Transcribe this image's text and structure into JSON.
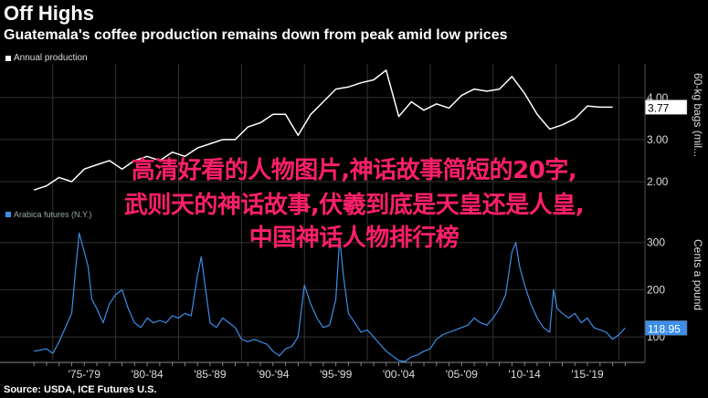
{
  "header": {
    "title": "Off Highs",
    "subtitle": "Guatemala's coffee production remains down from peak amid low prices",
    "source": "Source: USDA, ICE Futures U.S."
  },
  "overlay": {
    "line1": "高清好看的人物图片,神话故事简短的20字,",
    "line2": "武则天的神话故事,伏羲到底是天皇还是人皇,",
    "line3": "中国神话人物排行榜"
  },
  "colors": {
    "top_line": "#ffffff",
    "bottom_line": "#3c8ee8",
    "grid": "#333333",
    "background": "#000000"
  },
  "chart_data": [
    {
      "type": "line",
      "legend": "Annual production",
      "ylabel": "60-kg bags (mil...",
      "yticks": [
        "2.00",
        "3.00",
        "4.00"
      ],
      "ylim": [
        1.5,
        4.8
      ],
      "last_value_label": "3.77",
      "x": [
        1973,
        1974,
        1975,
        1976,
        1977,
        1978,
        1979,
        1980,
        1981,
        1982,
        1983,
        1984,
        1985,
        1986,
        1987,
        1988,
        1989,
        1990,
        1991,
        1992,
        1993,
        1994,
        1995,
        1996,
        1997,
        1998,
        1999,
        2000,
        2001,
        2002,
        2003,
        2004,
        2005,
        2006,
        2007,
        2008,
        2009,
        2010,
        2011,
        2012,
        2013,
        2014,
        2015,
        2016,
        2017,
        2018,
        2019
      ],
      "values": [
        1.8,
        1.9,
        2.1,
        2.0,
        2.3,
        2.4,
        2.5,
        2.3,
        2.5,
        2.6,
        2.5,
        2.7,
        2.6,
        2.8,
        2.9,
        3.0,
        3.0,
        3.3,
        3.4,
        3.6,
        3.6,
        3.1,
        3.6,
        3.9,
        4.2,
        4.25,
        4.35,
        4.42,
        4.65,
        3.55,
        3.9,
        3.7,
        3.85,
        3.75,
        4.05,
        4.2,
        4.15,
        4.2,
        4.5,
        4.1,
        3.6,
        3.25,
        3.35,
        3.5,
        3.8,
        3.77,
        3.77
      ]
    },
    {
      "type": "line",
      "legend": "Arabica futures (N.Y.)",
      "ylabel": "Cents a pound",
      "yticks": [
        "100",
        "200",
        "300"
      ],
      "ylim": [
        50,
        340
      ],
      "last_value_label": "118.95",
      "x": [
        1973.0,
        1973.5,
        1974.0,
        1974.5,
        1975.0,
        1975.5,
        1976.0,
        1976.3,
        1976.6,
        1977.0,
        1977.3,
        1977.6,
        1978.0,
        1978.5,
        1979.0,
        1979.5,
        1980.0,
        1980.5,
        1981.0,
        1981.5,
        1982.0,
        1982.5,
        1983.0,
        1983.5,
        1984.0,
        1984.5,
        1985.0,
        1985.5,
        1986.0,
        1986.3,
        1986.6,
        1987.0,
        1987.5,
        1988.0,
        1988.5,
        1989.0,
        1989.5,
        1990.0,
        1990.5,
        1991.0,
        1991.5,
        1992.0,
        1992.5,
        1993.0,
        1993.5,
        1994.0,
        1994.5,
        1995.0,
        1995.5,
        1996.0,
        1996.5,
        1997.0,
        1997.3,
        1997.6,
        1998.0,
        1998.5,
        1999.0,
        1999.5,
        2000.0,
        2000.5,
        2001.0,
        2001.5,
        2002.0,
        2002.5,
        2003.0,
        2003.5,
        2004.0,
        2004.5,
        2005.0,
        2005.5,
        2006.0,
        2006.5,
        2007.0,
        2007.5,
        2008.0,
        2008.5,
        2009.0,
        2009.5,
        2010.0,
        2010.5,
        2011.0,
        2011.3,
        2011.6,
        2012.0,
        2012.5,
        2013.0,
        2013.5,
        2014.0,
        2014.3,
        2014.6,
        2015.0,
        2015.5,
        2016.0,
        2016.5,
        2017.0,
        2017.5,
        2018.0,
        2018.5,
        2019.0,
        2019.5,
        2020.0
      ],
      "values": [
        70,
        72,
        75,
        65,
        90,
        120,
        150,
        240,
        320,
        280,
        250,
        180,
        160,
        130,
        170,
        190,
        200,
        160,
        130,
        120,
        140,
        130,
        135,
        130,
        145,
        140,
        150,
        145,
        230,
        270,
        210,
        130,
        120,
        140,
        130,
        120,
        95,
        90,
        95,
        90,
        85,
        70,
        60,
        75,
        80,
        100,
        210,
        170,
        140,
        120,
        125,
        180,
        310,
        230,
        150,
        130,
        110,
        115,
        100,
        85,
        70,
        60,
        50,
        48,
        58,
        62,
        70,
        75,
        95,
        105,
        110,
        115,
        120,
        125,
        140,
        130,
        125,
        140,
        160,
        190,
        280,
        300,
        250,
        210,
        170,
        140,
        120,
        110,
        200,
        160,
        150,
        140,
        150,
        130,
        140,
        120,
        115,
        110,
        95,
        105,
        118.95
      ],
      "xticks": [
        "'75-'79",
        "'80-'84",
        "'85-'89",
        "'90-'94",
        "'95-'99",
        "'00-'04",
        "'05-'09",
        "'10-'14",
        "'15-'19"
      ]
    }
  ]
}
